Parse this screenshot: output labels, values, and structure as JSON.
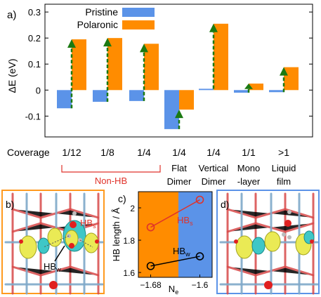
{
  "figure": {
    "panel_a": {
      "label": "a)",
      "legend": {
        "pristine": "Pristine",
        "polaronic": "Polaronic"
      },
      "colors": {
        "pristine": "#5b93e8",
        "polaronic": "#ff8c00",
        "arrow": "#1b7a12",
        "nonhb": "#e0322a"
      },
      "coverage_label": "Coverage",
      "nonhb_label": "Non-HB",
      "subcategories": [
        "",
        "",
        "",
        "Flat\nDimer",
        "Vertical\nDimer",
        "Mono\n-layer",
        "Liquid\nfilm"
      ]
    },
    "panel_b": {
      "label": "b)",
      "hbs": "HB",
      "hbs_sub": "s",
      "hbw": "HB",
      "hbw_sub": "w"
    },
    "panel_c": {
      "label": "c)",
      "hbs": "HB",
      "hbs_sub": "s",
      "hbw": "HB",
      "hbw_sub": "w",
      "xlabel_main": "N",
      "xlabel_sub": "e"
    },
    "panel_d": {
      "label": "d)"
    }
  },
  "chart_data": [
    {
      "type": "bar",
      "ylabel": "ΔE (eV)",
      "ylim": [
        -0.18,
        0.33
      ],
      "yticks": [
        -0.1,
        0.0,
        0.1,
        0.2,
        0.3
      ],
      "ytick_labels": [
        "-0.1",
        "0",
        "0.1",
        "0.2",
        "0.3"
      ],
      "categories": [
        "1/12",
        "1/8",
        "1/4",
        "1/4",
        "1/4",
        "1/1",
        ">1"
      ],
      "series": [
        {
          "name": "Pristine",
          "values": [
            -0.07,
            -0.045,
            -0.042,
            -0.15,
            0.005,
            -0.01,
            -0.008
          ]
        },
        {
          "name": "Polaronic",
          "values": [
            0.195,
            0.2,
            0.178,
            -0.075,
            0.255,
            0.025,
            0.088
          ]
        }
      ]
    },
    {
      "type": "line",
      "ylabel": "HB length / Å",
      "xlim": [
        -1.7,
        -1.58
      ],
      "ylim": [
        1.57,
        2.1
      ],
      "xticks": [
        -1.68,
        -1.6
      ],
      "xtick_labels": [
        "−1.68",
        "−1.6"
      ],
      "yticks": [
        1.6,
        1.8,
        2.0
      ],
      "ytick_labels": [
        "1.6",
        "1.8",
        "2"
      ],
      "series": [
        {
          "name": "HBs",
          "x": [
            -1.68,
            -1.6
          ],
          "y": [
            1.88,
            2.05
          ]
        },
        {
          "name": "HBw",
          "x": [
            -1.68,
            -1.6
          ],
          "y": [
            1.64,
            1.7
          ]
        }
      ]
    }
  ]
}
